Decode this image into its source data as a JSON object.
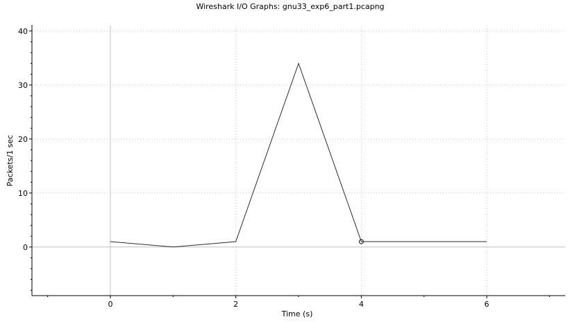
{
  "window": {
    "title": "Wireshark I/O Graphs: gnu33_exp6_part1.pcapng"
  },
  "chart_data": {
    "type": "line",
    "title": "Wireshark I/O Graphs: gnu33_exp6_part1.pcapng",
    "xlabel": "Time (s)",
    "ylabel": "Packets/1 sec",
    "xlim": [
      -1.25,
      7.25
    ],
    "ylim": [
      -9,
      41
    ],
    "x_ticks": [
      0,
      2,
      4,
      6
    ],
    "x_tick_labels": [
      "0",
      "2",
      "4",
      "6"
    ],
    "x_minor_ticks": [
      -1,
      1,
      3,
      5,
      7
    ],
    "y_ticks": [
      0,
      10,
      20,
      30,
      40
    ],
    "y_tick_labels": [
      "0",
      "10",
      "20",
      "30",
      "40"
    ],
    "y_minor_step": 2,
    "grid": true,
    "zero_lines": true,
    "series": [
      {
        "x": [
          0,
          1,
          2,
          3,
          4,
          5,
          6
        ],
        "values": [
          1,
          0,
          1,
          34,
          1,
          1,
          1
        ],
        "color": "#2b2b2b"
      }
    ],
    "marker": {
      "x": 4,
      "y": 1,
      "shape": "circle"
    },
    "colors": {
      "line": "#2b2b2b",
      "grid": "#c8c8c8",
      "zero_line": "#c0c0c0",
      "axis": "#000000"
    }
  }
}
